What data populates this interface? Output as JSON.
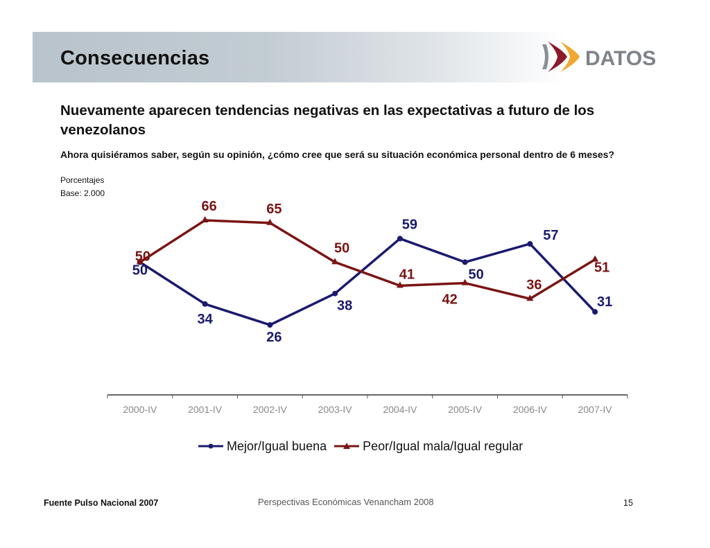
{
  "header": {
    "title": "Consecuencias",
    "logo_text": "DATOS"
  },
  "headline": "Nuevamente aparecen tendencias negativas en  las expectativas a futuro de los venezolanos",
  "question": "Ahora quisiéramos saber, según su opinión, ¿cómo cree que será su situación económica personal dentro de 6 meses?",
  "units_note": "Porcentajes",
  "base_note": "Base: 2.000",
  "footer": {
    "source": "Fuente Pulso Nacional 2007",
    "center": "Perspectivas Económicas Venancham 2008",
    "page_number": "15"
  },
  "colors": {
    "series_blue": "#1a1a6e",
    "series_red": "#7a1414",
    "axis_label": "#888888",
    "logo_gray": "#7d8389",
    "logo_red": "#8b1a2a",
    "logo_orange": "#f0a830"
  },
  "chart_data": {
    "type": "line",
    "title": "",
    "xlabel": "",
    "ylabel": "",
    "categories": [
      "2000-IV",
      "2001-IV",
      "2002-IV",
      "2003-IV",
      "2004-IV",
      "2005-IV",
      "2006-IV",
      "2007-IV"
    ],
    "series": [
      {
        "name": "Mejor/Igual buena",
        "marker": "circle",
        "color": "#1a1a6e",
        "values": [
          50,
          34,
          26,
          38,
          59,
          50,
          57,
          31
        ]
      },
      {
        "name": "Peor/Igual mala/Igual regular",
        "marker": "triangle",
        "color": "#7a1414",
        "values": [
          50,
          66,
          65,
          50,
          41,
          42,
          36,
          51
        ]
      }
    ],
    "ylim": [
      0,
      70
    ],
    "grid": false,
    "legend_position": "bottom",
    "data_labels": true
  }
}
